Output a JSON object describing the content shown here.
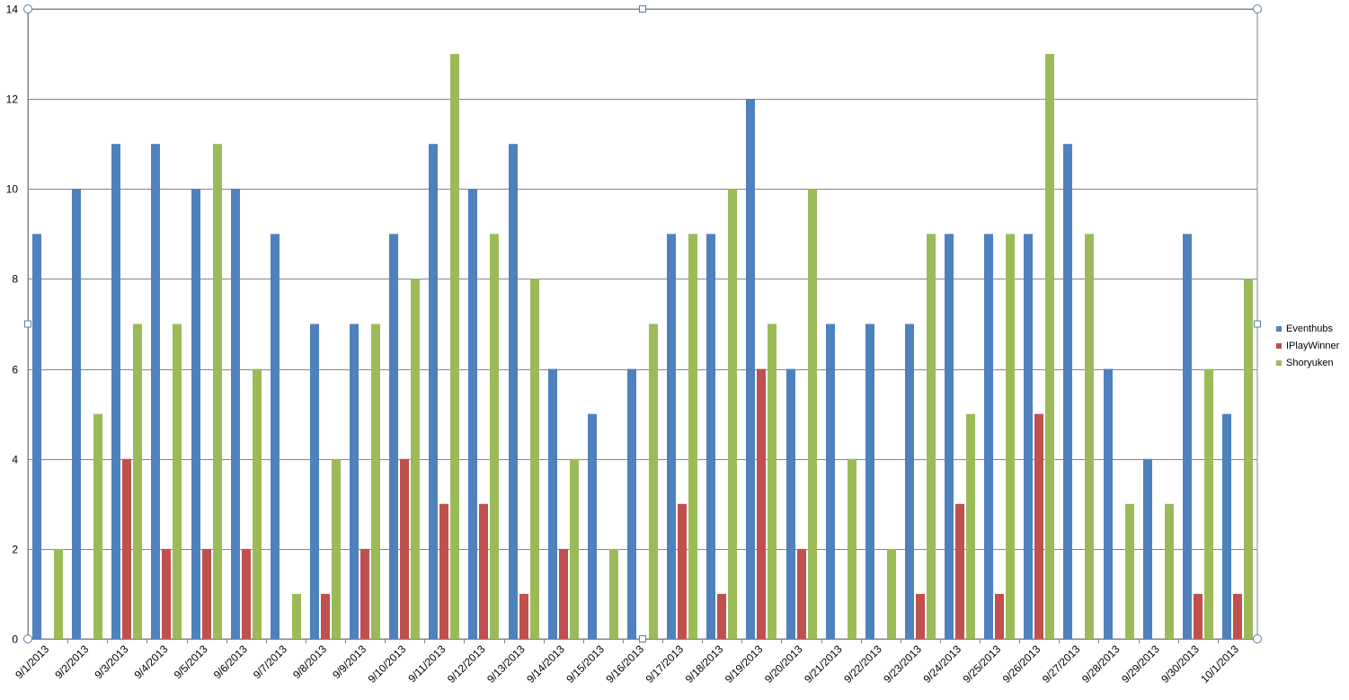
{
  "chart_data": {
    "type": "bar",
    "ylim": [
      0,
      14
    ],
    "yticks": [
      0,
      2,
      4,
      6,
      8,
      10,
      12,
      14
    ],
    "grid": true,
    "legend_position": "right",
    "categories": [
      "9/1/2013",
      "9/2/2013",
      "9/3/2013",
      "9/4/2013",
      "9/5/2013",
      "9/6/2013",
      "9/7/2013",
      "9/8/2013",
      "9/9/2013",
      "9/10/2013",
      "9/11/2013",
      "9/12/2013",
      "9/13/2013",
      "9/14/2013",
      "9/15/2013",
      "9/16/2013",
      "9/17/2013",
      "9/18/2013",
      "9/19/2013",
      "9/20/2013",
      "9/21/2013",
      "9/22/2013",
      "9/23/2013",
      "9/24/2013",
      "9/25/2013",
      "9/26/2013",
      "9/27/2013",
      "9/28/2013",
      "9/29/2013",
      "9/30/2013",
      "10/1/2013"
    ],
    "series": [
      {
        "name": "Eventhubs",
        "color": "#4F81BD",
        "values": [
          9,
          10,
          11,
          11,
          10,
          10,
          9,
          7,
          7,
          9,
          11,
          10,
          11,
          6,
          5,
          6,
          9,
          9,
          12,
          6,
          7,
          7,
          7,
          9,
          9,
          9,
          11,
          6,
          4,
          9,
          5
        ]
      },
      {
        "name": "IPlayWinner",
        "color": "#C0504D",
        "values": [
          0,
          0,
          4,
          2,
          2,
          2,
          0,
          1,
          2,
          4,
          3,
          3,
          1,
          2,
          0,
          0,
          3,
          1,
          6,
          2,
          0,
          0,
          1,
          3,
          1,
          5,
          0,
          0,
          0,
          1,
          1
        ]
      },
      {
        "name": "Shoryuken",
        "color": "#9BBB59",
        "values": [
          2,
          5,
          7,
          7,
          11,
          6,
          1,
          4,
          7,
          8,
          13,
          9,
          8,
          4,
          2,
          7,
          9,
          10,
          7,
          10,
          4,
          2,
          9,
          5,
          9,
          13,
          9,
          3,
          3,
          6,
          8
        ]
      }
    ]
  }
}
